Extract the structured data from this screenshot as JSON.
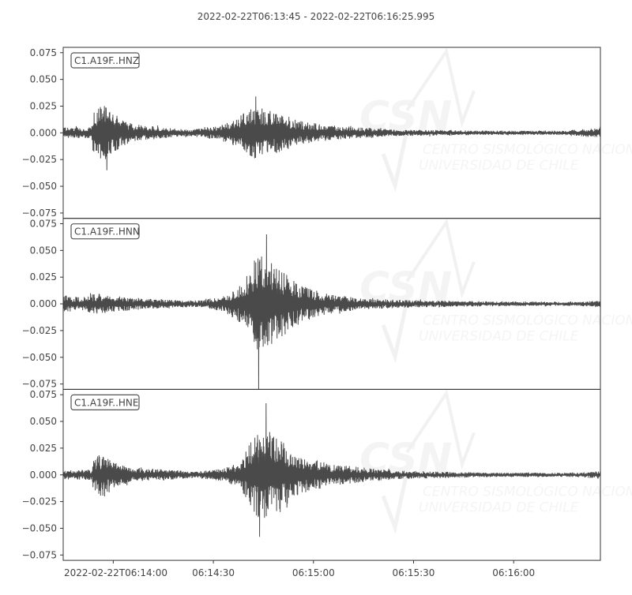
{
  "chart_data": {
    "type": "line",
    "title": "2022-02-22T06:13:45  -  2022-02-22T06:16:25.995",
    "time_start": "2022-02-22T06:13:45",
    "time_end": "2022-02-22T06:16:25.995",
    "duration_seconds": 160.995,
    "ylim": [
      -0.08,
      0.08
    ],
    "yticks": [
      0.075,
      0.05,
      0.025,
      0.0,
      -0.025,
      -0.05,
      -0.075
    ],
    "ytick_labels": [
      "0.075",
      "0.050",
      "0.025",
      "0.000",
      "−0.025",
      "−0.050",
      "−0.075"
    ],
    "xticks_seconds": [
      15,
      45,
      75,
      105,
      135
    ],
    "xtick_labels": [
      "2022-02-22T06:14:00",
      "06:14:30",
      "06:15:00",
      "06:15:30",
      "06:16:00"
    ],
    "line_color": "#4a4a4a",
    "grid": false,
    "series": [
      {
        "name": "C1.A19F..HNZ",
        "envelope_seconds": [
          0,
          8.5,
          9,
          12,
          14,
          20,
          30,
          38,
          45,
          50,
          55,
          58,
          62,
          70,
          80,
          100,
          130,
          150,
          158,
          161
        ],
        "envelope_amplitude": [
          0.005,
          0.005,
          0.02,
          0.028,
          0.02,
          0.009,
          0.005,
          0.003,
          0.006,
          0.01,
          0.02,
          0.028,
          0.022,
          0.012,
          0.007,
          0.003,
          0.002,
          0.002,
          0.004,
          0.005
        ],
        "peak_max": 0.034,
        "peak_min": -0.035
      },
      {
        "name": "C1.A19F..HNN",
        "envelope_seconds": [
          0,
          5,
          10,
          14,
          20,
          30,
          40,
          48,
          54,
          58,
          61,
          64,
          70,
          78,
          90,
          110,
          140,
          155,
          161
        ],
        "envelope_amplitude": [
          0.008,
          0.006,
          0.01,
          0.008,
          0.006,
          0.004,
          0.003,
          0.007,
          0.02,
          0.045,
          0.05,
          0.035,
          0.02,
          0.01,
          0.005,
          0.003,
          0.002,
          0.002,
          0.003
        ],
        "peak_max": 0.065,
        "peak_min": -0.08
      },
      {
        "name": "C1.A19F..HNE",
        "envelope_seconds": [
          0,
          8.5,
          9,
          12,
          14,
          20,
          30,
          40,
          48,
          53,
          57,
          60,
          64,
          70,
          80,
          100,
          130,
          155,
          161
        ],
        "envelope_amplitude": [
          0.004,
          0.005,
          0.015,
          0.022,
          0.014,
          0.007,
          0.005,
          0.003,
          0.006,
          0.012,
          0.035,
          0.045,
          0.035,
          0.02,
          0.01,
          0.004,
          0.002,
          0.002,
          0.004
        ],
        "peak_max": 0.067,
        "peak_min": -0.058
      }
    ]
  },
  "watermark": {
    "logo_text": "CSN",
    "line1": "CENTRO SISMOLÓGICO NACIONAL",
    "line2": "UNIVERSIDAD DE CHILE"
  }
}
